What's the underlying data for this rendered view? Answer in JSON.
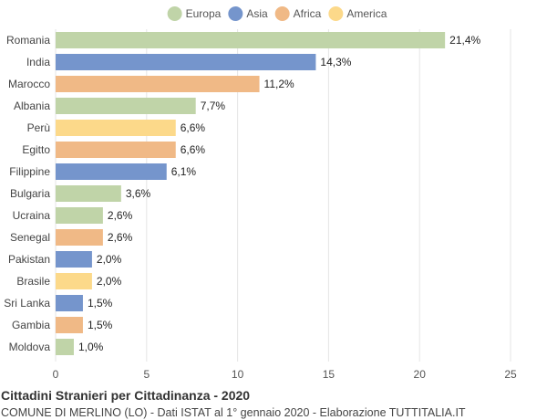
{
  "chart_data": {
    "type": "bar",
    "orientation": "horizontal",
    "title": "Cittadini Stranieri per Cittadinanza - 2020",
    "subtitle": "COMUNE DI MERLINO (LO) - Dati ISTAT al 1° gennaio 2020 - Elaborazione TUTTITALIA.IT",
    "legend": [
      {
        "name": "Europa",
        "color": "#c0d4a8"
      },
      {
        "name": "Asia",
        "color": "#7595cc"
      },
      {
        "name": "Africa",
        "color": "#f0b986"
      },
      {
        "name": "America",
        "color": "#fcd98a"
      }
    ],
    "legend_position": "top-center",
    "categories": [
      "Romania",
      "India",
      "Marocco",
      "Albania",
      "Perù",
      "Egitto",
      "Filippine",
      "Bulgaria",
      "Ucraina",
      "Senegal",
      "Pakistan",
      "Brasile",
      "Sri Lanka",
      "Gambia",
      "Moldova"
    ],
    "values": [
      21.4,
      14.3,
      11.2,
      7.7,
      6.6,
      6.6,
      6.1,
      3.6,
      2.6,
      2.6,
      2.0,
      2.0,
      1.5,
      1.5,
      1.0
    ],
    "value_labels": [
      "21,4%",
      "14,3%",
      "11,2%",
      "7,7%",
      "6,6%",
      "6,6%",
      "6,1%",
      "3,6%",
      "2,6%",
      "2,6%",
      "2,0%",
      "2,0%",
      "1,5%",
      "1,5%",
      "1,0%"
    ],
    "groups": [
      "Europa",
      "Asia",
      "Africa",
      "Europa",
      "America",
      "Africa",
      "Asia",
      "Europa",
      "Europa",
      "Africa",
      "Asia",
      "America",
      "Asia",
      "Africa",
      "Europa"
    ],
    "xlim": [
      0,
      25
    ],
    "xticks": [
      0,
      5,
      10,
      15,
      20,
      25
    ],
    "xtick_labels": [
      "0",
      "5",
      "10",
      "15",
      "20",
      "25"
    ],
    "grid": true,
    "grid_color": "#e5e5e5"
  }
}
